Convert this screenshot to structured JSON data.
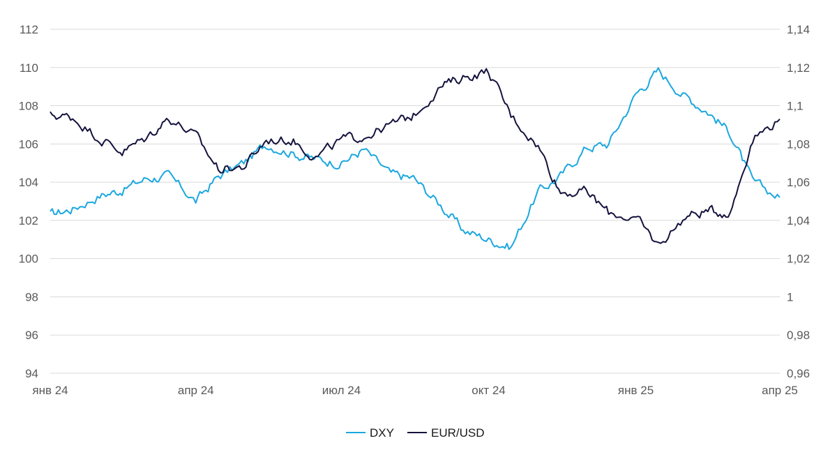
{
  "chart_data": {
    "type": "line",
    "title": "",
    "x_tick_labels": [
      "янв 24",
      "апр 24",
      "июл 24",
      "окт 24",
      "янв 25",
      "апр 25"
    ],
    "y_left": {
      "ylim": [
        94,
        112
      ],
      "ticks": [
        "94",
        "96",
        "98",
        "100",
        "102",
        "104",
        "106",
        "108",
        "110",
        "112"
      ]
    },
    "y_right": {
      "ylim": [
        0.96,
        1.14
      ],
      "ticks": [
        "0,96",
        "0,98",
        "1",
        "1,02",
        "1,04",
        "1,06",
        "1,08",
        "1,1",
        "1,12",
        "1,14"
      ]
    },
    "grid": true,
    "legend_position": "bottom",
    "series": [
      {
        "name": "DXY",
        "axis": "left",
        "color": "#1ba7df",
        "x": [
          "2024-01-01",
          "2024-01-15",
          "2024-02-01",
          "2024-02-15",
          "2024-03-01",
          "2024-03-15",
          "2024-04-01",
          "2024-04-15",
          "2024-05-01",
          "2024-05-15",
          "2024-06-01",
          "2024-06-15",
          "2024-07-01",
          "2024-07-15",
          "2024-08-01",
          "2024-08-15",
          "2024-09-01",
          "2024-09-15",
          "2024-10-01",
          "2024-10-15",
          "2024-11-01",
          "2024-11-15",
          "2024-12-01",
          "2024-12-15",
          "2025-01-01",
          "2025-01-15",
          "2025-02-01",
          "2025-02-15",
          "2025-03-01",
          "2025-03-15",
          "2025-04-01"
        ],
        "values": [
          102.3,
          102.6,
          103.3,
          103.6,
          104.2,
          104.3,
          103.0,
          104.3,
          105.0,
          106.0,
          105.5,
          105.2,
          105.0,
          105.7,
          104.4,
          104.2,
          102.8,
          101.5,
          101.0,
          100.6,
          103.5,
          104.3,
          105.8,
          106.0,
          108.6,
          109.8,
          108.5,
          107.7,
          106.6,
          104.0,
          103.2
        ]
      },
      {
        "name": "EUR/USD",
        "axis": "right",
        "color": "#14123d",
        "x": [
          "2024-01-01",
          "2024-01-15",
          "2024-02-01",
          "2024-02-15",
          "2024-03-01",
          "2024-03-15",
          "2024-04-01",
          "2024-04-15",
          "2024-05-01",
          "2024-05-15",
          "2024-06-01",
          "2024-06-15",
          "2024-07-01",
          "2024-07-15",
          "2024-08-01",
          "2024-08-15",
          "2024-09-01",
          "2024-09-15",
          "2024-10-01",
          "2024-10-15",
          "2024-11-01",
          "2024-11-15",
          "2024-12-01",
          "2024-12-15",
          "2025-01-01",
          "2025-01-15",
          "2025-02-01",
          "2025-02-15",
          "2025-03-01",
          "2025-03-15",
          "2025-04-01"
        ],
        "values": [
          1.095,
          1.094,
          1.083,
          1.076,
          1.083,
          1.094,
          1.084,
          1.067,
          1.068,
          1.082,
          1.082,
          1.073,
          1.082,
          1.084,
          1.09,
          1.095,
          1.11,
          1.115,
          1.118,
          1.095,
          1.079,
          1.055,
          1.055,
          1.044,
          1.041,
          1.027,
          1.042,
          1.045,
          1.044,
          1.083,
          1.093
        ]
      }
    ]
  }
}
